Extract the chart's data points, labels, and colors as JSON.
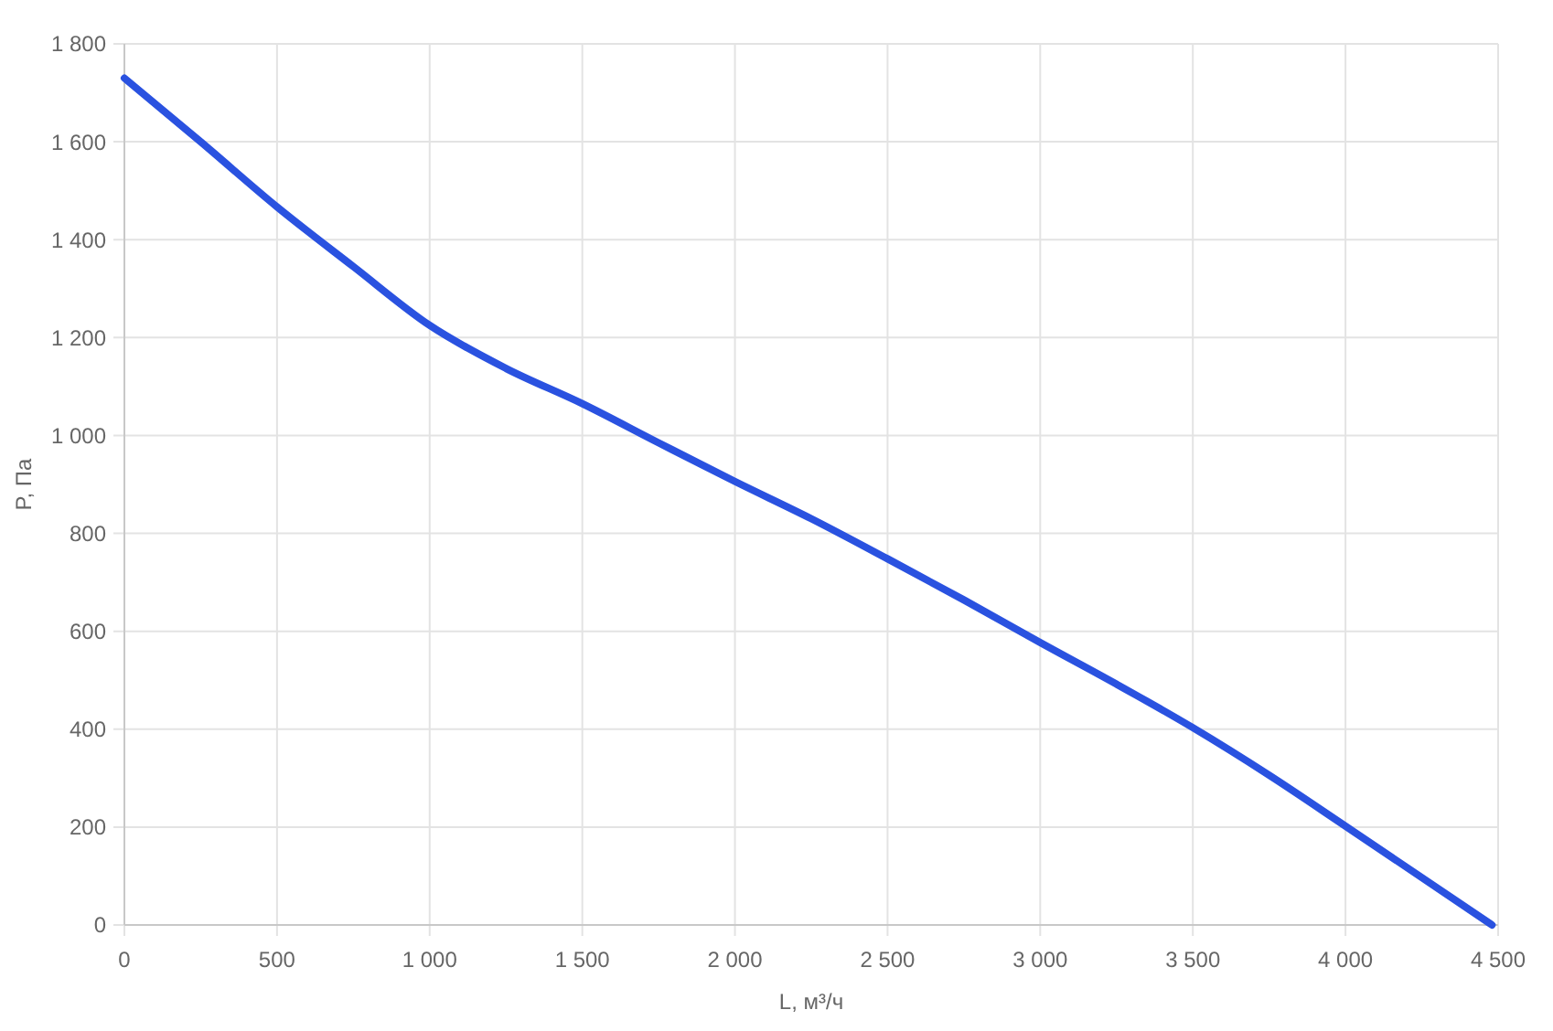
{
  "chart_data": {
    "type": "line",
    "xlabel": "L, м³/ч",
    "ylabel": "P, Па",
    "x": [
      0,
      250,
      500,
      750,
      1000,
      1250,
      1500,
      1750,
      2000,
      2250,
      2500,
      2750,
      3000,
      3250,
      3500,
      3750,
      4000,
      4480
    ],
    "series": [
      {
        "color": "#2a52e0",
        "values": [
          1730,
          1600,
          1467,
          1345,
          1225,
          1137,
          1065,
          985,
          906,
          830,
          748,
          664,
          577,
          492,
          403,
          306,
          202,
          0
        ]
      }
    ],
    "xlim": [
      0,
      4500
    ],
    "ylim": [
      0,
      1800
    ],
    "xticks": [
      0,
      500,
      {
        "value": 1000,
        "label": "1 000"
      },
      {
        "value": 1500,
        "label": "1 500"
      },
      {
        "value": 2000,
        "label": "2 000"
      },
      {
        "value": 2500,
        "label": "2 500"
      },
      {
        "value": 3000,
        "label": "3 000"
      },
      {
        "value": 3500,
        "label": "3 500"
      },
      {
        "value": 4000,
        "label": "4 000"
      },
      {
        "value": 4500,
        "label": "4 500"
      }
    ],
    "yticks": [
      0,
      200,
      400,
      600,
      800,
      {
        "value": 1000,
        "label": "1 000"
      },
      {
        "value": 1200,
        "label": "1 200"
      },
      {
        "value": 1400,
        "label": "1 400"
      },
      {
        "value": 1600,
        "label": "1 600"
      },
      {
        "value": 1800,
        "label": "1 800"
      }
    ],
    "grid": true
  }
}
